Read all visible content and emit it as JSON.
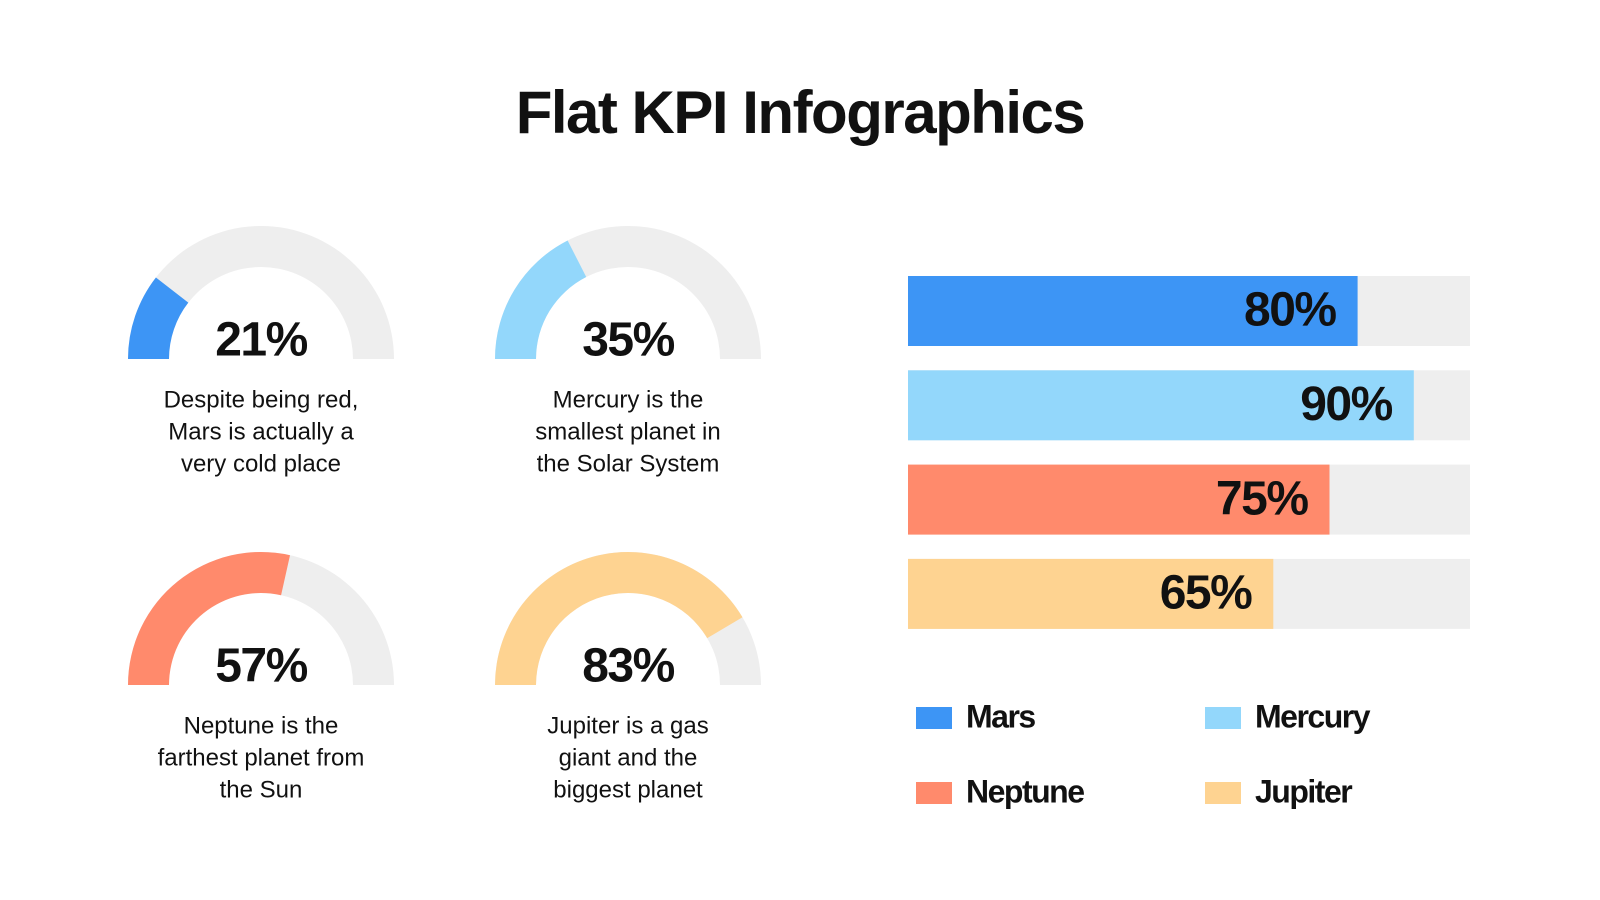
{
  "title": "Flat KPI Infographics",
  "chart_data": [
    {
      "type": "gauge",
      "value": 21,
      "value_label": "21%",
      "ylim": [
        0,
        100
      ],
      "color": "#3d95f5",
      "caption": [
        "Despite being red,",
        "Mars is actually a",
        "very cold place"
      ]
    },
    {
      "type": "gauge",
      "value": 35,
      "value_label": "35%",
      "ylim": [
        0,
        100
      ],
      "color": "#93d7fb",
      "caption": [
        "Mercury is the",
        "smallest planet in",
        "the Solar System"
      ]
    },
    {
      "type": "gauge",
      "value": 57,
      "value_label": "57%",
      "ylim": [
        0,
        100
      ],
      "color": "#ff8a6c",
      "caption": [
        "Neptune is the",
        "farthest planet from",
        "the Sun"
      ]
    },
    {
      "type": "gauge",
      "value": 83,
      "value_label": "83%",
      "ylim": [
        0,
        100
      ],
      "color": "#fed391",
      "caption": [
        "Jupiter is a gas",
        "giant and the",
        "biggest planet"
      ]
    },
    {
      "type": "bar",
      "categories": [
        "Mars",
        "Mercury",
        "Neptune",
        "Jupiter"
      ],
      "values": [
        80,
        90,
        75,
        65
      ],
      "value_labels": [
        "80%",
        "90%",
        "75%",
        "65%"
      ],
      "colors": [
        "#3d95f5",
        "#93d7fb",
        "#ff8a6c",
        "#fed391"
      ],
      "xlim": [
        0,
        100
      ]
    }
  ]
}
